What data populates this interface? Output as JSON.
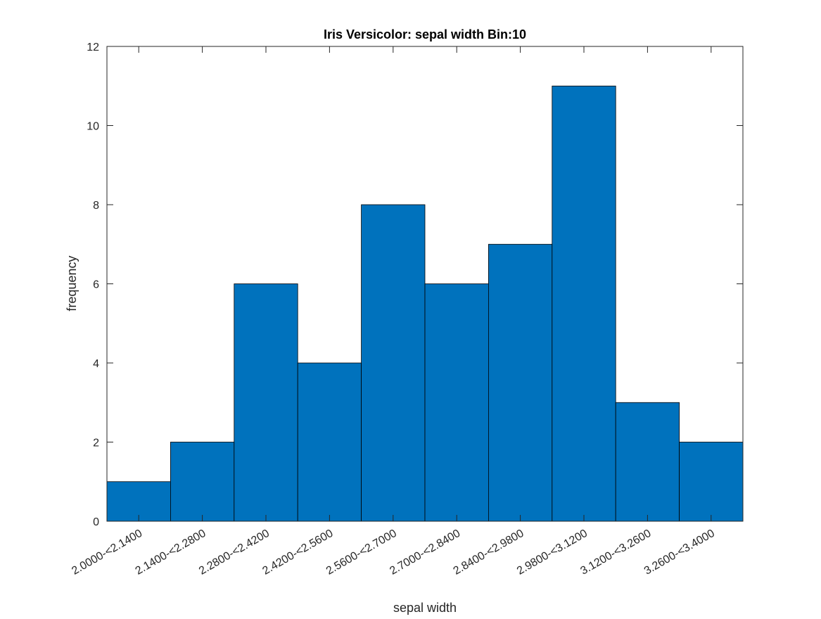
{
  "chart_data": {
    "type": "bar",
    "title": "Iris Versicolor: sepal width Bin:10",
    "xlabel": "sepal width",
    "ylabel": "frequency",
    "categories": [
      "2.0000-<2.1400",
      "2.1400-<2.2800",
      "2.2800-<2.4200",
      "2.4200-<2.5600",
      "2.5600-<2.7000",
      "2.7000-<2.8400",
      "2.8400-<2.9800",
      "2.9800-<3.1200",
      "3.1200-<3.2600",
      "3.2600-<3.4000"
    ],
    "values": [
      1,
      2,
      6,
      4,
      8,
      6,
      7,
      11,
      3,
      2
    ],
    "ylim": [
      0,
      12
    ],
    "yticks": [
      "0",
      "2",
      "4",
      "6",
      "8",
      "10",
      "12"
    ],
    "grid": false,
    "bar_color": "#0072BD",
    "edge_color": "#000000"
  }
}
